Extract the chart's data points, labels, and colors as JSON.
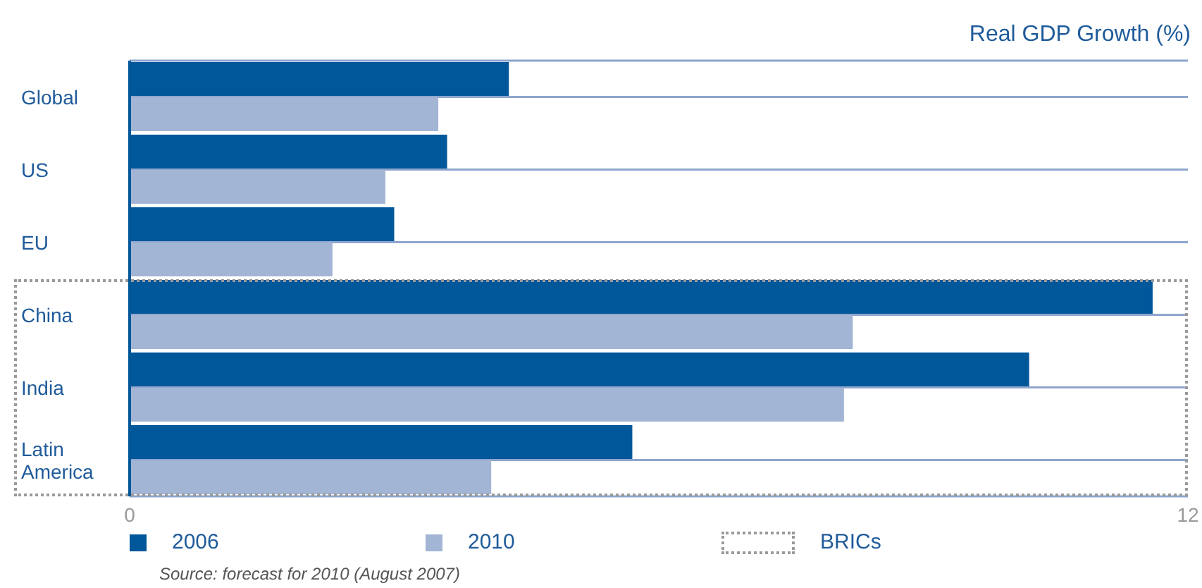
{
  "chart_data": {
    "type": "bar",
    "orientation": "horizontal",
    "title": "Real GDP Growth (%)",
    "categories": [
      "Global",
      "US",
      "EU",
      "China",
      "India",
      "Latin America"
    ],
    "series": [
      {
        "name": "2006",
        "color": "#00579a",
        "values": [
          4.3,
          3.6,
          3.0,
          11.6,
          10.2,
          5.7
        ]
      },
      {
        "name": "2010",
        "color": "#a3b5d5",
        "values": [
          3.5,
          2.9,
          2.3,
          8.2,
          8.1,
          4.1
        ]
      }
    ],
    "xlim": [
      0,
      12
    ],
    "xticks": [
      0,
      12
    ],
    "grid": "y",
    "legend": "bottom",
    "annotations": [
      "BRICs",
      "Source: forecast for 2010 (August 2007)"
    ]
  }
}
